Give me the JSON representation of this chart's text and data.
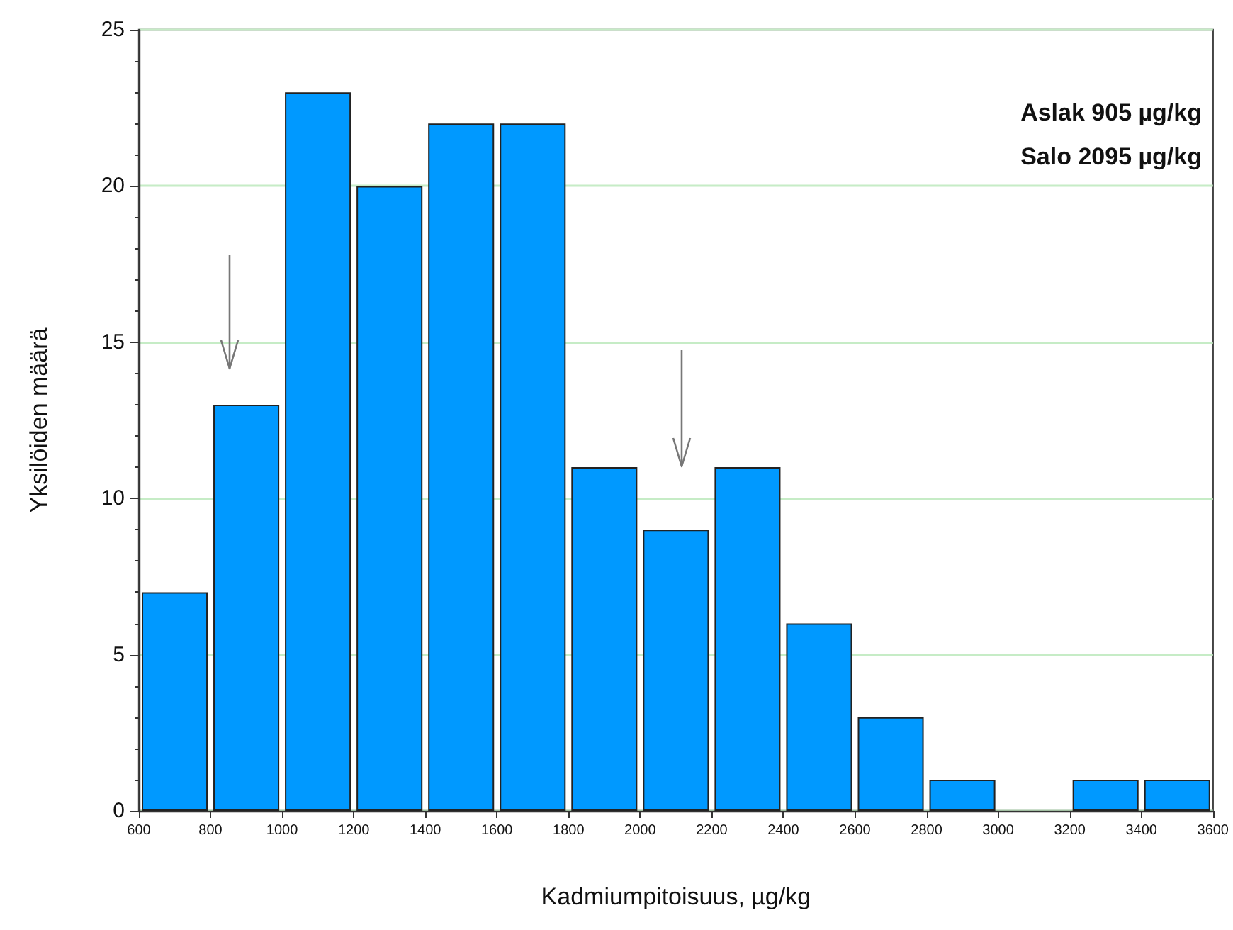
{
  "chart_data": {
    "type": "histogram",
    "xlabel": "Kadmiumpitoisuus, µg/kg",
    "ylabel": "Yksilöiden määrä",
    "bins": [
      600,
      800,
      1000,
      1200,
      1400,
      1600,
      1800,
      2000,
      2200,
      2400,
      2600,
      2800,
      3000,
      3200,
      3400,
      3600
    ],
    "values": [
      7,
      13,
      23,
      20,
      22,
      22,
      11,
      9,
      11,
      6,
      3,
      1,
      0,
      1,
      1
    ],
    "color": "#0099ff",
    "xlim": [
      600,
      3600
    ],
    "xticks": [
      600,
      800,
      1000,
      1200,
      1400,
      1600,
      1800,
      2000,
      2200,
      2400,
      2600,
      2800,
      3000,
      3200,
      3400,
      3600
    ],
    "ylim": [
      0,
      25
    ],
    "yticks": [
      0,
      5,
      10,
      15,
      20,
      25
    ],
    "grid": "y",
    "annotations": [
      "Aslak 905 µg/kg",
      "Salo 2095 µg/kg"
    ]
  }
}
